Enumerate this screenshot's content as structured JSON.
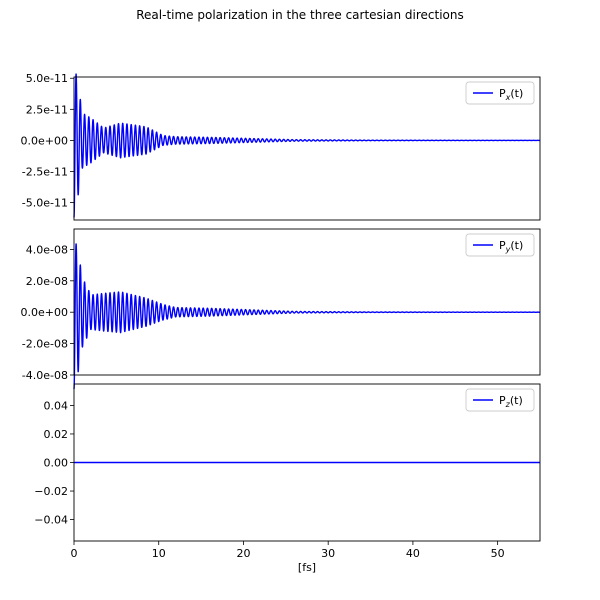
{
  "chart_data": {
    "title": "Real-time polarization in the three cartesian directions",
    "xlabel": "[fs]",
    "xlim": [
      0,
      55
    ],
    "xticks": [
      0,
      10,
      20,
      30,
      40,
      50
    ],
    "xtick_labels": [
      "0",
      "10",
      "20",
      "30",
      "40",
      "50"
    ],
    "line_color": "#0000ff",
    "grid": false,
    "legend_placement": "top-right",
    "panels": [
      {
        "type": "line",
        "series": [
          {
            "name": "Px(t)",
            "legend_base": "P",
            "legend_sub": "x",
            "legend_tail": "(t)"
          }
        ],
        "ylim": [
          -6.4e-11,
          5.1e-11
        ],
        "yticks": [
          5e-11,
          2.5e-11,
          0,
          -2.5e-11,
          -5e-11
        ],
        "ytick_labels": [
          "5.0e-11",
          "2.5e-11",
          "0.0e+00",
          "-2.5e-11",
          "-5.0e-11"
        ],
        "signal": {
          "period_fs": 0.5,
          "envelope": [
            [
              0,
              6.2e-11
            ],
            [
              0.4,
              4.8e-11
            ],
            [
              1.0,
              2.2e-11
            ],
            [
              2.0,
              1.8e-11
            ],
            [
              3.5,
              1e-11
            ],
            [
              5.5,
              1.4e-11
            ],
            [
              8.5,
              1.1e-11
            ],
            [
              10.5,
              4e-12
            ],
            [
              12,
              3e-12
            ],
            [
              16,
              2.5e-12
            ],
            [
              21,
              1.5e-12
            ],
            [
              26,
              6e-13
            ],
            [
              35,
              2e-13
            ],
            [
              55,
              5e-14
            ]
          ]
        }
      },
      {
        "type": "line",
        "series": [
          {
            "name": "Py(t)",
            "legend_base": "P",
            "legend_sub": "y",
            "legend_tail": "(t)"
          }
        ],
        "ylim": [
          -4e-08,
          5.3e-08
        ],
        "yticks": [
          4e-08,
          2e-08,
          0,
          -2e-08,
          -4e-08
        ],
        "ytick_labels": [
          "4.0e-08",
          "2.0e-08",
          "0.0e+00",
          "-2.0e-08",
          "-4.0e-08"
        ],
        "signal": {
          "period_fs": 0.5,
          "envelope": [
            [
              0,
              4.9e-08
            ],
            [
              0.5,
              3.8e-08
            ],
            [
              1.0,
              2.2e-08
            ],
            [
              2.0,
              1.1e-08
            ],
            [
              3.5,
              1.2e-08
            ],
            [
              5.5,
              1.3e-08
            ],
            [
              8.5,
              9e-09
            ],
            [
              10.5,
              5e-09
            ],
            [
              12,
              3e-09
            ],
            [
              16,
              2.5e-09
            ],
            [
              21,
              1.5e-09
            ],
            [
              26,
              5e-10
            ],
            [
              35,
              1.5e-10
            ],
            [
              55,
              5e-11
            ]
          ]
        }
      },
      {
        "type": "line",
        "series": [
          {
            "name": "Pz(t)",
            "legend_base": "P",
            "legend_sub": "z",
            "legend_tail": "(t)",
            "values": [
              [
                0,
                0
              ],
              [
                55,
                0
              ]
            ]
          }
        ],
        "ylim": [
          -0.055,
          0.055
        ],
        "yticks": [
          0.04,
          0.02,
          0.0,
          -0.02,
          -0.04
        ],
        "ytick_labels": [
          "0.04",
          "0.02",
          "0.00",
          "−0.02",
          "−0.04"
        ]
      }
    ]
  }
}
